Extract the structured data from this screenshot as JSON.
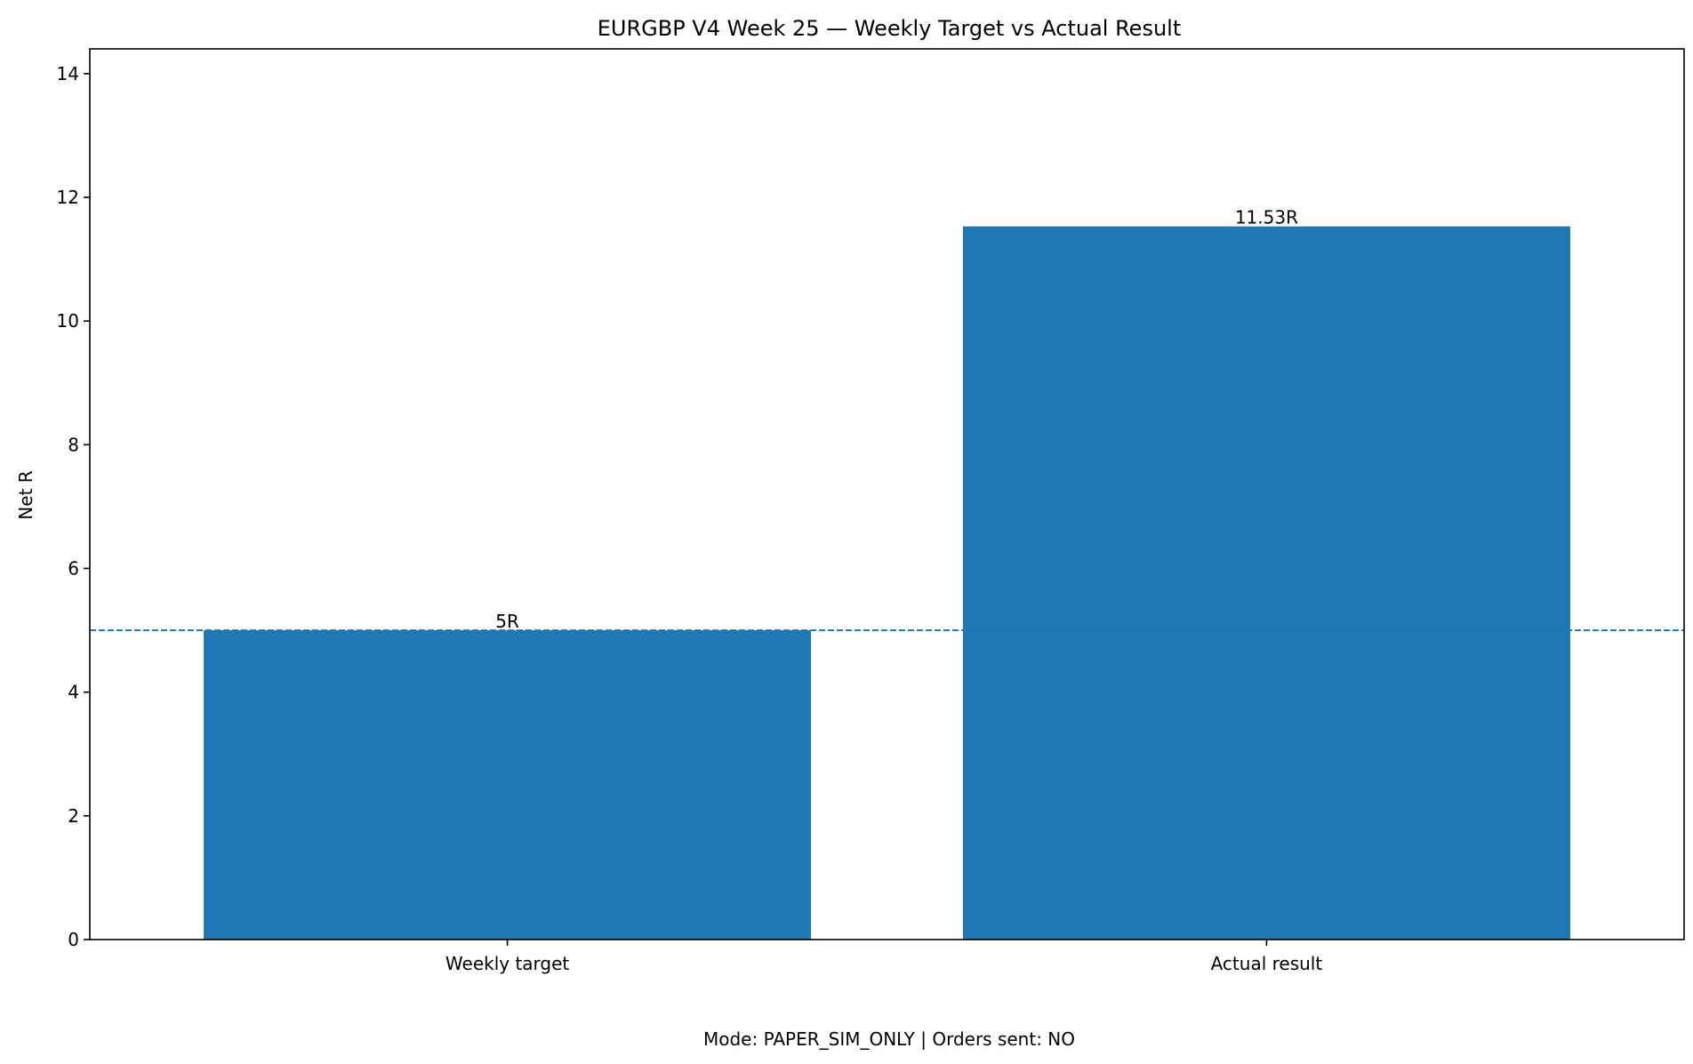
{
  "chart_data": {
    "type": "bar",
    "title": "EURGBP V4 Week 25 — Weekly Target vs Actual Result",
    "xlabel": "",
    "ylabel": "Net R",
    "categories": [
      "Weekly target",
      "Actual result"
    ],
    "values": [
      5,
      11.53
    ],
    "bar_labels": [
      "5R",
      "11.53R"
    ],
    "ylim": [
      0,
      14.4
    ],
    "yticks": [
      0,
      2,
      4,
      6,
      8,
      10,
      12,
      14
    ],
    "reference_line": {
      "value": 5,
      "style": "dashed"
    },
    "grid": false,
    "colors": {
      "bar": "#1f77b4",
      "reference_line": "#1f77b4",
      "axes": "#000000"
    }
  },
  "footer": "Mode: PAPER_SIM_ONLY | Orders sent: NO"
}
